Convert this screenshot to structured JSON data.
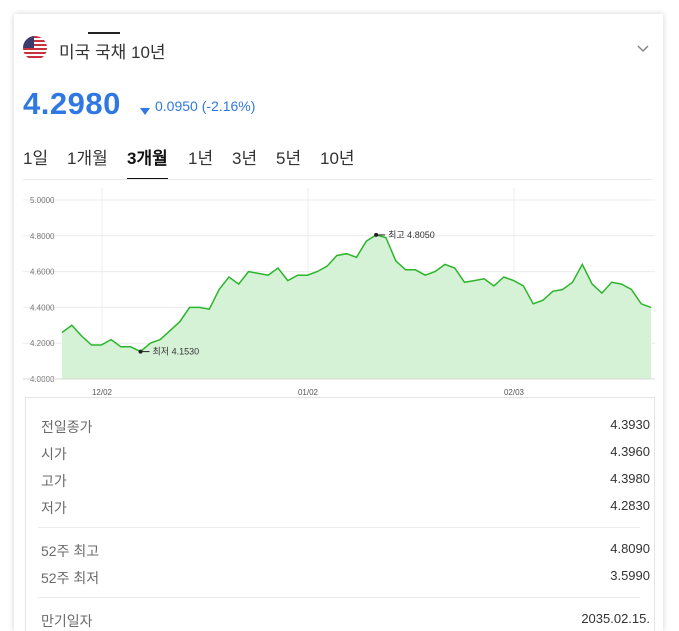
{
  "header": {
    "title": "미국 국채 10년",
    "flag_icon": "us-flag-icon",
    "expand_icon": "chevron-down-icon"
  },
  "quote": {
    "price": "4.2980",
    "change": "0.0950 (-2.16%)",
    "direction_icon": "triangle-down-icon",
    "color": "#2f78e3"
  },
  "tabs": [
    {
      "label": "1일",
      "active": false
    },
    {
      "label": "1개월",
      "active": false
    },
    {
      "label": "3개월",
      "active": true
    },
    {
      "label": "1년",
      "active": false
    },
    {
      "label": "3년",
      "active": false
    },
    {
      "label": "5년",
      "active": false
    },
    {
      "label": "10년",
      "active": false
    }
  ],
  "chart_data": {
    "type": "area",
    "title": "",
    "xlabel": "",
    "ylabel": "",
    "ylim": [
      4.0,
      5.0
    ],
    "y_ticks": [
      "5.0000",
      "4.8000",
      "4.6000",
      "4.4000",
      "4.2000",
      "4.0000"
    ],
    "x_ticks": [
      "12/02",
      "01/02",
      "02/03"
    ],
    "line_color": "#2bb52b",
    "fill_color": "#d6f2d6",
    "grid": true,
    "values": [
      4.26,
      4.3,
      4.24,
      4.19,
      4.19,
      4.22,
      4.18,
      4.18,
      4.153,
      4.2,
      4.22,
      4.27,
      4.32,
      4.4,
      4.4,
      4.39,
      4.5,
      4.57,
      4.53,
      4.6,
      4.59,
      4.58,
      4.62,
      4.55,
      4.58,
      4.58,
      4.6,
      4.63,
      4.69,
      4.7,
      4.68,
      4.77,
      4.805,
      4.79,
      4.66,
      4.61,
      4.61,
      4.58,
      4.6,
      4.64,
      4.62,
      4.54,
      4.55,
      4.56,
      4.52,
      4.57,
      4.55,
      4.52,
      4.42,
      4.44,
      4.49,
      4.5,
      4.54,
      4.64,
      4.53,
      4.48,
      4.54,
      4.53,
      4.5,
      4.42,
      4.4
    ],
    "max_label": "최고 4.8050",
    "min_label": "최저 4.1530"
  },
  "stats": {
    "group1": [
      {
        "label": "전일종가",
        "value": "4.3930"
      },
      {
        "label": "시가",
        "value": "4.3960"
      },
      {
        "label": "고가",
        "value": "4.3980"
      },
      {
        "label": "저가",
        "value": "4.2830"
      }
    ],
    "group2": [
      {
        "label": "52주 최고",
        "value": "4.8090"
      },
      {
        "label": "52주 최저",
        "value": "3.5990"
      }
    ],
    "group3": [
      {
        "label": "만기일자",
        "value": "2035.02.15."
      }
    ]
  }
}
